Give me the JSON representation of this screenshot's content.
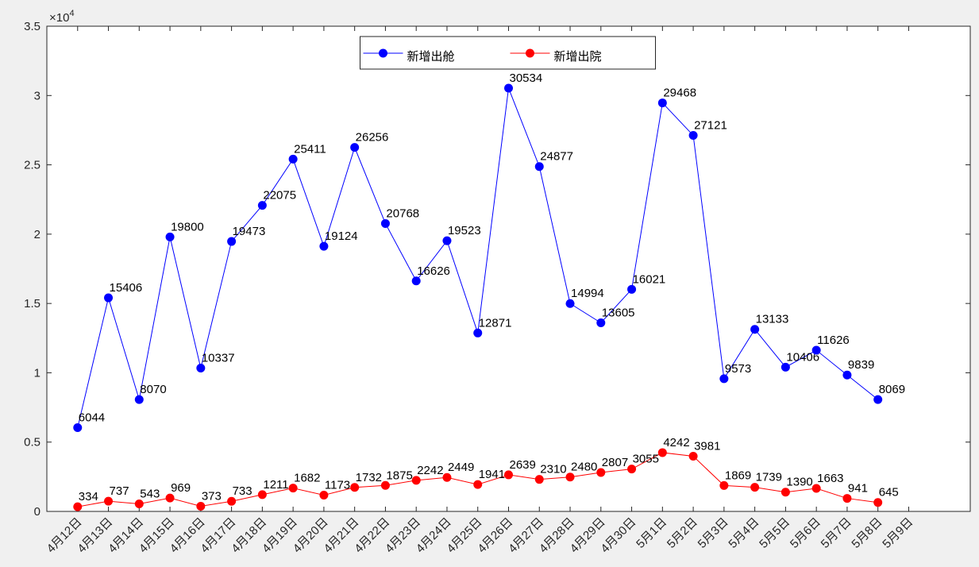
{
  "chart_data": {
    "type": "line",
    "categories": [
      "4月12日",
      "4月13日",
      "4月14日",
      "4月15日",
      "4月16日",
      "4月17日",
      "4月18日",
      "4月19日",
      "4月20日",
      "4月21日",
      "4月22日",
      "4月23日",
      "4月24日",
      "4月25日",
      "4月26日",
      "4月27日",
      "4月28日",
      "4月29日",
      "4月30日",
      "5月1日",
      "5月2日",
      "5月3日",
      "5月4日",
      "5月5日",
      "5月6日",
      "5月7日",
      "5月8日",
      "5月9日"
    ],
    "series": [
      {
        "name": "新增出舱",
        "color": "#0000ff",
        "values": [
          6044,
          15406,
          8070,
          19800,
          10337,
          19473,
          22075,
          25411,
          19124,
          26256,
          20768,
          16626,
          19523,
          12871,
          30534,
          24877,
          14994,
          13605,
          16021,
          29468,
          27121,
          9573,
          13133,
          10406,
          11626,
          9839,
          8069,
          null
        ]
      },
      {
        "name": "新增出院",
        "color": "#ff0000",
        "values": [
          334,
          737,
          543,
          969,
          373,
          733,
          1211,
          1682,
          1173,
          1732,
          1875,
          2242,
          2449,
          1941,
          2639,
          2310,
          2480,
          2807,
          3055,
          4242,
          3981,
          1869,
          1739,
          1390,
          1663,
          941,
          645,
          null
        ]
      }
    ],
    "ylim": [
      0,
      35000
    ],
    "yticks": [
      0,
      {
        "value": 5000,
        "label": "0.5"
      },
      {
        "value": 10000,
        "label": "1"
      },
      {
        "value": 15000,
        "label": "1.5"
      },
      {
        "value": 20000,
        "label": "2"
      },
      {
        "value": 25000,
        "label": "2.5"
      },
      {
        "value": 30000,
        "label": "3"
      },
      {
        "value": 35000,
        "label": "3.5"
      }
    ],
    "y_multiplier": {
      "base": "×10",
      "exponent": "4"
    },
    "legend": "north",
    "grid": false
  }
}
